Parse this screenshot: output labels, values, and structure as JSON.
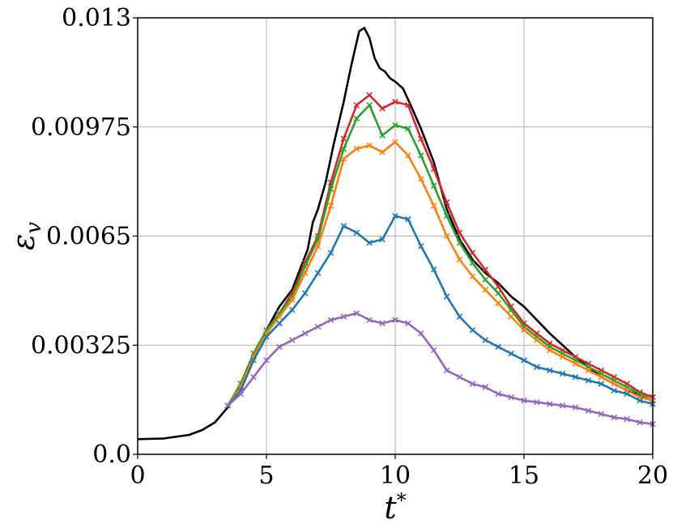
{
  "chart_data": {
    "type": "line",
    "xlabel": "t*",
    "ylabel": "ε_v",
    "xlim": [
      0,
      20
    ],
    "ylim": [
      0,
      0.013
    ],
    "grid": true,
    "xticks": [
      {
        "value": 0,
        "label": "0"
      },
      {
        "value": 5,
        "label": "5"
      },
      {
        "value": 10,
        "label": "10"
      },
      {
        "value": 15,
        "label": "15"
      },
      {
        "value": 20,
        "label": "20"
      }
    ],
    "yticks": [
      {
        "value": 0,
        "label": "0.0"
      },
      {
        "value": 0.00325,
        "label": "0.00325"
      },
      {
        "value": 0.0065,
        "label": "0.0065"
      },
      {
        "value": 0.00975,
        "label": "0.00975"
      },
      {
        "value": 0.013,
        "label": "0.013"
      }
    ],
    "series": [
      {
        "color": "#000000",
        "marker": "none",
        "x": [
          0,
          1,
          2,
          2.5,
          3,
          3.5,
          4,
          4.5,
          5,
          5.5,
          6,
          6.3,
          6.6,
          6.8,
          7,
          7.3,
          7.6,
          8,
          8.3,
          8.6,
          8.8,
          9,
          9.2,
          9.4,
          9.6,
          9.8,
          10,
          10.3,
          10.6,
          11,
          11.5,
          12,
          12.5,
          13,
          13.5,
          14,
          14.5,
          15,
          16,
          17,
          18,
          19,
          20
        ],
        "y": [
          0.00045,
          0.00047,
          0.00058,
          0.00072,
          0.00095,
          0.0014,
          0.0021,
          0.0029,
          0.0037,
          0.0044,
          0.0049,
          0.0055,
          0.0061,
          0.0069,
          0.0073,
          0.0081,
          0.0092,
          0.0105,
          0.0116,
          0.0126,
          0.0127,
          0.0124,
          0.0118,
          0.0115,
          0.0114,
          0.0112,
          0.0111,
          0.0109,
          0.0104,
          0.0097,
          0.0087,
          0.0073,
          0.0064,
          0.0058,
          0.0054,
          0.0051,
          0.0047,
          0.0044,
          0.0036,
          0.0029,
          0.0023,
          0.0019,
          0.0016
        ]
      },
      {
        "color": "#d62728",
        "marker": "x",
        "x": [
          3.5,
          4,
          4.5,
          5,
          5.5,
          6,
          6.5,
          7,
          7.5,
          8,
          8.5,
          9,
          9.5,
          10,
          10.5,
          11,
          11.5,
          12,
          12.5,
          13,
          13.5,
          14,
          14.5,
          15,
          15.5,
          16,
          16.5,
          17,
          17.5,
          18,
          18.5,
          19,
          19.5,
          20
        ],
        "y": [
          0.00145,
          0.0021,
          0.003,
          0.0037,
          0.0042,
          0.0048,
          0.0057,
          0.0065,
          0.0081,
          0.0094,
          0.0104,
          0.0107,
          0.0103,
          0.0105,
          0.0104,
          0.0094,
          0.0085,
          0.0075,
          0.0066,
          0.006,
          0.0055,
          0.005,
          0.0044,
          0.0039,
          0.0036,
          0.0033,
          0.0031,
          0.0029,
          0.0027,
          0.0025,
          0.0023,
          0.0021,
          0.00185,
          0.0017
        ]
      },
      {
        "color": "#2ca02c",
        "marker": "x",
        "x": [
          3.5,
          4,
          4.5,
          5,
          5.5,
          6,
          6.5,
          7,
          7.5,
          8,
          8.5,
          9,
          9.5,
          10,
          10.5,
          11,
          11.5,
          12,
          12.5,
          13,
          13.5,
          14,
          14.5,
          15,
          15.5,
          16,
          16.5,
          17,
          17.5,
          18,
          18.5,
          19,
          19.5,
          20
        ],
        "y": [
          0.00145,
          0.0021,
          0.003,
          0.0037,
          0.0042,
          0.0047,
          0.0056,
          0.0064,
          0.0079,
          0.0091,
          0.01,
          0.0104,
          0.0095,
          0.0098,
          0.0097,
          0.0089,
          0.008,
          0.0071,
          0.0063,
          0.0057,
          0.0052,
          0.0048,
          0.0043,
          0.0038,
          0.0035,
          0.0032,
          0.003,
          0.0028,
          0.0026,
          0.0024,
          0.0022,
          0.002,
          0.0018,
          0.0016
        ]
      },
      {
        "color": "#ff7f0e",
        "marker": "x",
        "x": [
          3.5,
          4,
          4.5,
          5,
          5.5,
          6,
          6.5,
          7,
          7.5,
          8,
          8.5,
          9,
          9.5,
          10,
          10.5,
          11,
          11.5,
          12,
          12.5,
          13,
          13.5,
          14,
          14.5,
          15,
          15.5,
          16,
          16.5,
          17,
          17.5,
          18,
          18.5,
          19,
          19.5,
          20
        ],
        "y": [
          0.00145,
          0.002,
          0.0029,
          0.0036,
          0.0041,
          0.0046,
          0.0054,
          0.0062,
          0.0074,
          0.0088,
          0.0091,
          0.0092,
          0.009,
          0.0093,
          0.0089,
          0.0082,
          0.0074,
          0.0065,
          0.0058,
          0.0053,
          0.0049,
          0.0045,
          0.0041,
          0.0037,
          0.0034,
          0.0031,
          0.0029,
          0.0027,
          0.0025,
          0.0023,
          0.0021,
          0.0019,
          0.0017,
          0.0016
        ]
      },
      {
        "color": "#1f77b4",
        "marker": "x",
        "x": [
          3.5,
          4,
          4.5,
          5,
          5.5,
          6,
          6.5,
          7,
          7.5,
          8,
          8.5,
          9,
          9.5,
          10,
          10.5,
          11,
          11.5,
          12,
          12.5,
          13,
          13.5,
          14,
          14.5,
          15,
          15.5,
          16,
          16.5,
          17,
          17.5,
          18,
          18.5,
          19,
          19.5,
          20
        ],
        "y": [
          0.00145,
          0.0019,
          0.0028,
          0.0035,
          0.0039,
          0.0043,
          0.0048,
          0.0054,
          0.006,
          0.0068,
          0.0066,
          0.0063,
          0.0064,
          0.0071,
          0.007,
          0.0062,
          0.0055,
          0.0047,
          0.0041,
          0.0037,
          0.0034,
          0.0032,
          0.003,
          0.0028,
          0.0026,
          0.0025,
          0.0024,
          0.0023,
          0.0022,
          0.0021,
          0.0019,
          0.0018,
          0.0016,
          0.0015
        ]
      },
      {
        "color": "#9467bd",
        "marker": "x",
        "x": [
          3.5,
          4,
          4.5,
          5,
          5.5,
          6,
          6.5,
          7,
          7.5,
          8,
          8.5,
          9,
          9.5,
          10,
          10.5,
          11,
          11.5,
          12,
          12.5,
          13,
          13.5,
          14,
          14.5,
          15,
          15.5,
          16,
          16.5,
          17,
          17.5,
          18,
          18.5,
          19,
          19.5,
          20
        ],
        "y": [
          0.00145,
          0.0018,
          0.0023,
          0.0028,
          0.0032,
          0.0034,
          0.0036,
          0.0038,
          0.004,
          0.0041,
          0.0042,
          0.004,
          0.0039,
          0.004,
          0.0039,
          0.0036,
          0.0031,
          0.0025,
          0.0023,
          0.0021,
          0.002,
          0.0018,
          0.0017,
          0.0016,
          0.00155,
          0.0015,
          0.00145,
          0.0014,
          0.0013,
          0.0012,
          0.0011,
          0.00105,
          0.00095,
          0.0009
        ]
      }
    ]
  }
}
